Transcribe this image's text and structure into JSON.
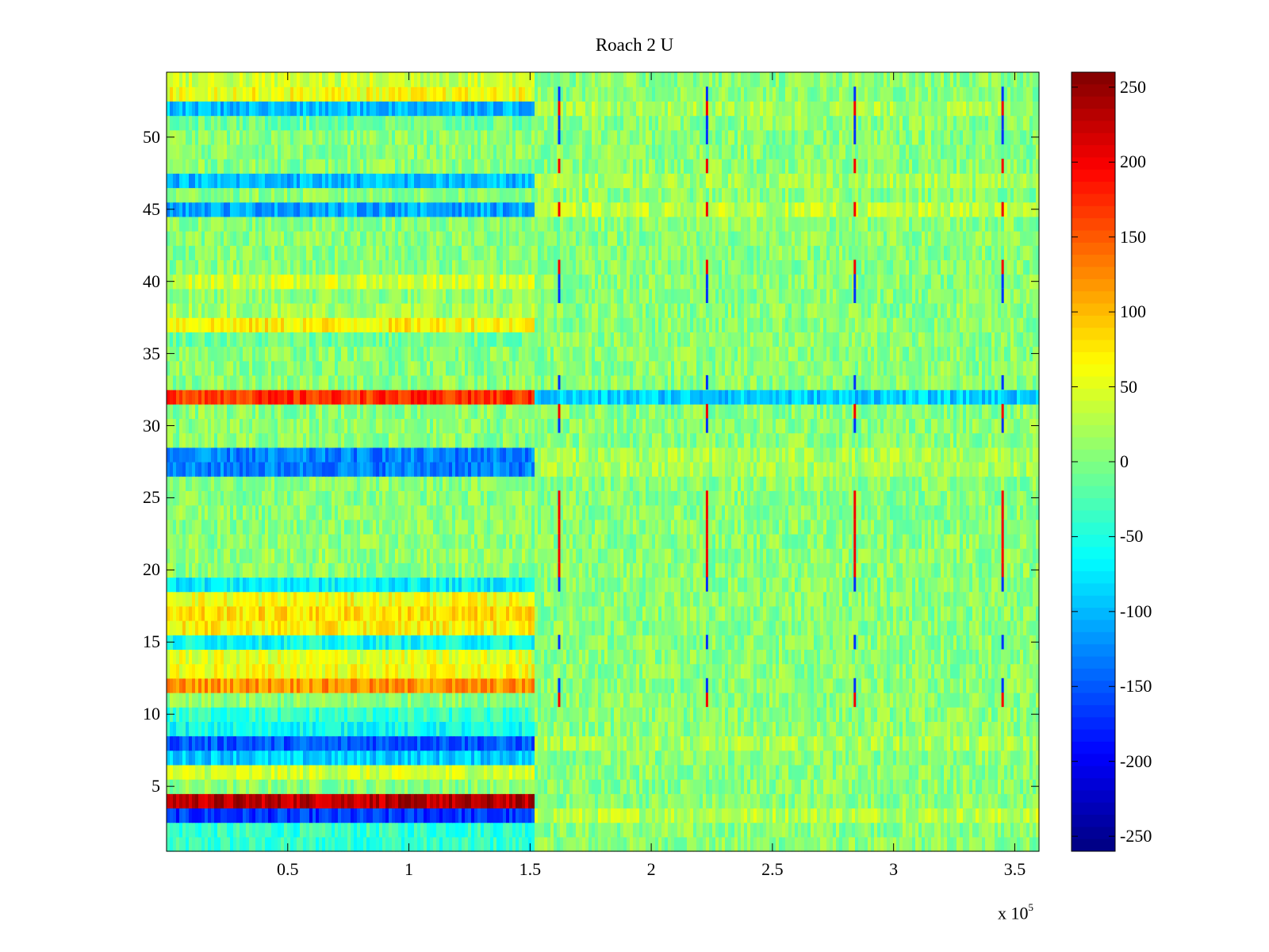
{
  "chart_data": {
    "type": "heatmap",
    "title": "Roach 2 U",
    "xlabel": "",
    "ylabel": "",
    "x_exponent_label": "x 10",
    "x_exponent": "5",
    "xlim": [
      0,
      360000
    ],
    "ylim": [
      0.5,
      54.5
    ],
    "x_ticks": [
      {
        "value": 50000,
        "label": "0.5"
      },
      {
        "value": 100000,
        "label": "1"
      },
      {
        "value": 150000,
        "label": "1.5"
      },
      {
        "value": 200000,
        "label": "2"
      },
      {
        "value": 250000,
        "label": "2.5"
      },
      {
        "value": 300000,
        "label": "3"
      },
      {
        "value": 350000,
        "label": "3.5"
      }
    ],
    "y_ticks": [
      5,
      10,
      15,
      20,
      25,
      30,
      35,
      40,
      45,
      50
    ],
    "colorbar": {
      "range": [
        -260,
        260
      ],
      "colormap": "jet",
      "ticks": [
        250,
        200,
        150,
        100,
        50,
        0,
        -50,
        -100,
        -150,
        -200,
        -250
      ]
    },
    "segment_boundary_x": 152000,
    "rows_first_segment": {
      "4": 230,
      "3": -170,
      "8": -150,
      "7": -90,
      "12": 120,
      "13": 60,
      "14": 50,
      "16": 70,
      "17": 80,
      "18": 60,
      "19": -70,
      "21": 10,
      "27": -130,
      "28": -130,
      "32": 170,
      "36": -10,
      "37": 70,
      "38": 20,
      "40": 40,
      "45": -110,
      "47": -100,
      "51": -10,
      "52": -100,
      "53": 60,
      "54": 40,
      "1": -40,
      "2": -40,
      "6": 40,
      "9": -60,
      "10": -40,
      "15": -60
    },
    "rows_second_segment": {
      "32": -90,
      "3": 30,
      "8": 20,
      "45": 30,
      "47": 20,
      "52": 20,
      "27": 20,
      "28": 20
    },
    "background_value": 5,
    "spike_columns_x": [
      162000,
      223000,
      284000,
      345000
    ],
    "spike_rows_high": [
      11,
      20,
      21,
      22,
      23,
      24,
      25,
      31,
      41,
      45,
      48,
      52
    ],
    "spike_rows_low": [
      12,
      15,
      19,
      30,
      33,
      39,
      40,
      50,
      51,
      53
    ]
  }
}
